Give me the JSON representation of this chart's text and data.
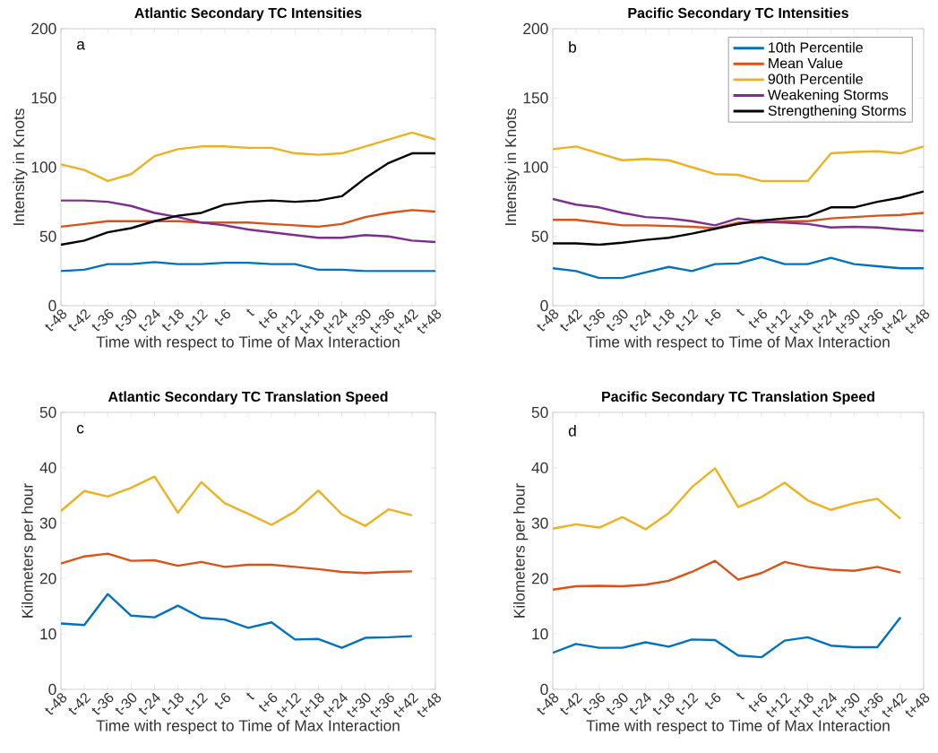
{
  "chart_data": [
    {
      "type": "line",
      "title": "Atlantic Secondary TC Intensities",
      "xlabel": "Time with respect to Time of Max Interaction",
      "ylabel": "Intensity in Knots",
      "annotations": [
        "a"
      ],
      "categories": [
        "t-48",
        "t-42",
        "t-36",
        "t-30",
        "t-24",
        "t-18",
        "t-12",
        "t-6",
        "t",
        "t+6",
        "t+12",
        "t+18",
        "t+24",
        "t+30",
        "t+36",
        "t+42",
        "t+48"
      ],
      "ylim": [
        0,
        200
      ],
      "yticks": [
        0,
        50,
        100,
        150,
        200
      ],
      "grid": false,
      "line_style": "solid",
      "series": [
        {
          "color": "#0072bd",
          "values": [
            25,
            26,
            30,
            30,
            31.5,
            30,
            30,
            31,
            31,
            30,
            30,
            26,
            26,
            25,
            25,
            25,
            25
          ]
        },
        {
          "color": "#d95319",
          "values": [
            57,
            59,
            61,
            61,
            61,
            61,
            60,
            60,
            60,
            59,
            58,
            57,
            59,
            64,
            67,
            69,
            68
          ]
        },
        {
          "color": "#edb120",
          "values": [
            102,
            98,
            90,
            95,
            108,
            113,
            115,
            115,
            114,
            114,
            110,
            109,
            110,
            115,
            120,
            125,
            120
          ]
        },
        {
          "color": "#7e2f8e",
          "values": [
            76,
            76,
            75,
            72,
            67,
            64,
            60,
            58,
            55,
            53,
            51,
            49,
            49,
            51,
            50,
            47,
            46
          ]
        },
        {
          "color": "#000000",
          "values": [
            44,
            47,
            53,
            56,
            61,
            65,
            67,
            73,
            75,
            76,
            75,
            76,
            79,
            92,
            103,
            110,
            110
          ]
        }
      ]
    },
    {
      "type": "line",
      "title": "Pacific Secondary TC Intensities",
      "xlabel": "Time with respect to Time of Max Interaction",
      "ylabel": "Intensity in Knots",
      "annotations": [
        "b"
      ],
      "categories": [
        "t-48",
        "t-42",
        "t-36",
        "t-30",
        "t-24",
        "t-18",
        "t-12",
        "t-6",
        "t",
        "t+6",
        "t+12",
        "t+18",
        "t+24",
        "t+30",
        "t+36",
        "t+42",
        "t+48"
      ],
      "ylim": [
        0,
        200
      ],
      "yticks": [
        0,
        50,
        100,
        150,
        200
      ],
      "grid": false,
      "line_style": "solid",
      "legend": "top right",
      "series": [
        {
          "name": "10th Percentile",
          "color": "#0072bd",
          "values": [
            27,
            25,
            20,
            20,
            24,
            28,
            25,
            30,
            30.5,
            35,
            30,
            30,
            34.5,
            30,
            28.5,
            27,
            27
          ]
        },
        {
          "name": "Mean Value",
          "color": "#d95319",
          "values": [
            62,
            62,
            60,
            58,
            58,
            57.5,
            57,
            56,
            60,
            60,
            61,
            61,
            63,
            64,
            65,
            65.5,
            67
          ]
        },
        {
          "name": "90th Percentile",
          "color": "#edb120",
          "values": [
            113,
            115,
            110,
            105,
            106,
            105,
            100,
            95,
            94.5,
            90,
            90,
            90,
            110,
            111,
            111.5,
            110,
            115
          ]
        },
        {
          "name": "Weakening Storms",
          "color": "#7e2f8e",
          "values": [
            77,
            73,
            71,
            67,
            64,
            63,
            61,
            58,
            63,
            60.5,
            60,
            59,
            56.5,
            57,
            56.5,
            55,
            54
          ]
        },
        {
          "name": "Strengthening Storms",
          "color": "#000000",
          "values": [
            45,
            45,
            44,
            45.5,
            47.5,
            49,
            52,
            55.5,
            59,
            61.5,
            63,
            64.5,
            71,
            71,
            75,
            78,
            82.5
          ]
        }
      ]
    },
    {
      "type": "line",
      "title": "Atlantic Secondary TC Translation Speed",
      "xlabel": "Time with respect to Time of Max Interaction",
      "ylabel": "Kilometers per hour",
      "annotations": [
        "c"
      ],
      "categories": [
        "t-48",
        "t-42",
        "t-36",
        "t-30",
        "t-24",
        "t-18",
        "t-12",
        "t-6",
        "t",
        "t+6",
        "t+12",
        "t+18",
        "t+24",
        "t+30",
        "t+36",
        "t+42",
        "t+48"
      ],
      "ylim": [
        0,
        50
      ],
      "yticks": [
        0,
        10,
        20,
        30,
        40,
        50
      ],
      "grid": false,
      "line_style": "solid",
      "series": [
        {
          "color": "#0072bd",
          "values": [
            11.9,
            11.6,
            17.2,
            13.3,
            13,
            15.1,
            12.9,
            12.6,
            11.1,
            12.1,
            9,
            9.1,
            7.5,
            9.3,
            9.4,
            9.6,
            null
          ]
        },
        {
          "color": "#d95319",
          "values": [
            22.7,
            24,
            24.5,
            23.2,
            23.3,
            22.3,
            23,
            22.1,
            22.5,
            22.5,
            22.1,
            21.7,
            21.2,
            21,
            21.2,
            21.3,
            null
          ]
        },
        {
          "color": "#edb120",
          "values": [
            32.2,
            35.8,
            34.8,
            36.4,
            38.4,
            31.9,
            37.4,
            33.6,
            31.7,
            29.7,
            32.1,
            35.9,
            31.6,
            29.5,
            32.5,
            31.4,
            null
          ]
        }
      ]
    },
    {
      "type": "line",
      "title": "Pacific Secondary TC Translation Speed",
      "xlabel": "Time with respect to Time of Max Interaction",
      "ylabel": "Kilometers per hour",
      "annotations": [
        "d"
      ],
      "categories": [
        "t-48",
        "t-42",
        "t-36",
        "t-30",
        "t-24",
        "t-18",
        "t-12",
        "t-6",
        "t",
        "t+6",
        "t+12",
        "t+18",
        "t+24",
        "t+30",
        "t+36",
        "t+42",
        "t+48"
      ],
      "ylim": [
        0,
        50
      ],
      "yticks": [
        0,
        10,
        20,
        30,
        40,
        50
      ],
      "grid": false,
      "line_style": "solid",
      "series": [
        {
          "color": "#0072bd",
          "values": [
            6.6,
            8.2,
            7.5,
            7.5,
            8.5,
            7.7,
            9,
            8.9,
            6.1,
            5.8,
            8.8,
            9.4,
            7.9,
            7.6,
            7.6,
            13,
            null
          ]
        },
        {
          "color": "#d95319",
          "values": [
            18,
            18.6,
            18.7,
            18.6,
            18.9,
            19.6,
            21.2,
            23.2,
            19.8,
            21,
            23,
            22.1,
            21.6,
            21.4,
            22.1,
            21.1,
            null
          ]
        },
        {
          "color": "#edb120",
          "values": [
            29,
            29.8,
            29.2,
            31.1,
            28.9,
            31.8,
            36.5,
            39.9,
            32.9,
            34.7,
            37.3,
            34.1,
            32.4,
            33.6,
            34.4,
            30.8,
            null
          ]
        }
      ]
    }
  ]
}
